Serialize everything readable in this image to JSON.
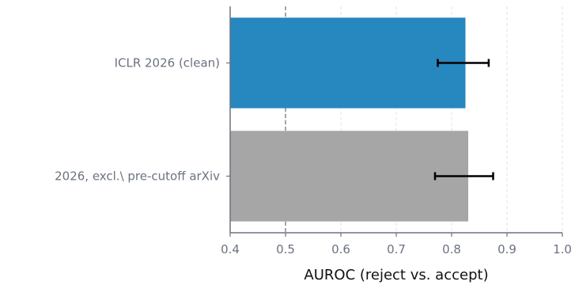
{
  "chart_data": {
    "type": "bar",
    "orientation": "horizontal",
    "categories": [
      "ICLR 2026 (clean)",
      "2026, excl.\\ pre-cutoff arXiv"
    ],
    "values": [
      0.825,
      0.83
    ],
    "error_low": [
      0.775,
      0.77
    ],
    "error_high": [
      0.867,
      0.875
    ],
    "colors": [
      "#2787bf",
      "#a6a6a6"
    ],
    "xlabel": "AUROC (reject vs. accept)",
    "ylabel": "",
    "xlim": [
      0.4,
      1.0
    ],
    "xticks": [
      "0.4",
      "0.5",
      "0.6",
      "0.7",
      "0.8",
      "0.9",
      "1.0"
    ],
    "reference_line": 0.5,
    "grid": "x, dashed"
  }
}
